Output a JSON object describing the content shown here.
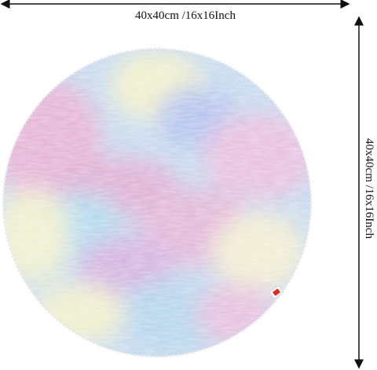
{
  "dimensions": {
    "width_label": "40x40cm /16x16Inch",
    "height_label": "40x40cm /16x16Inch"
  }
}
